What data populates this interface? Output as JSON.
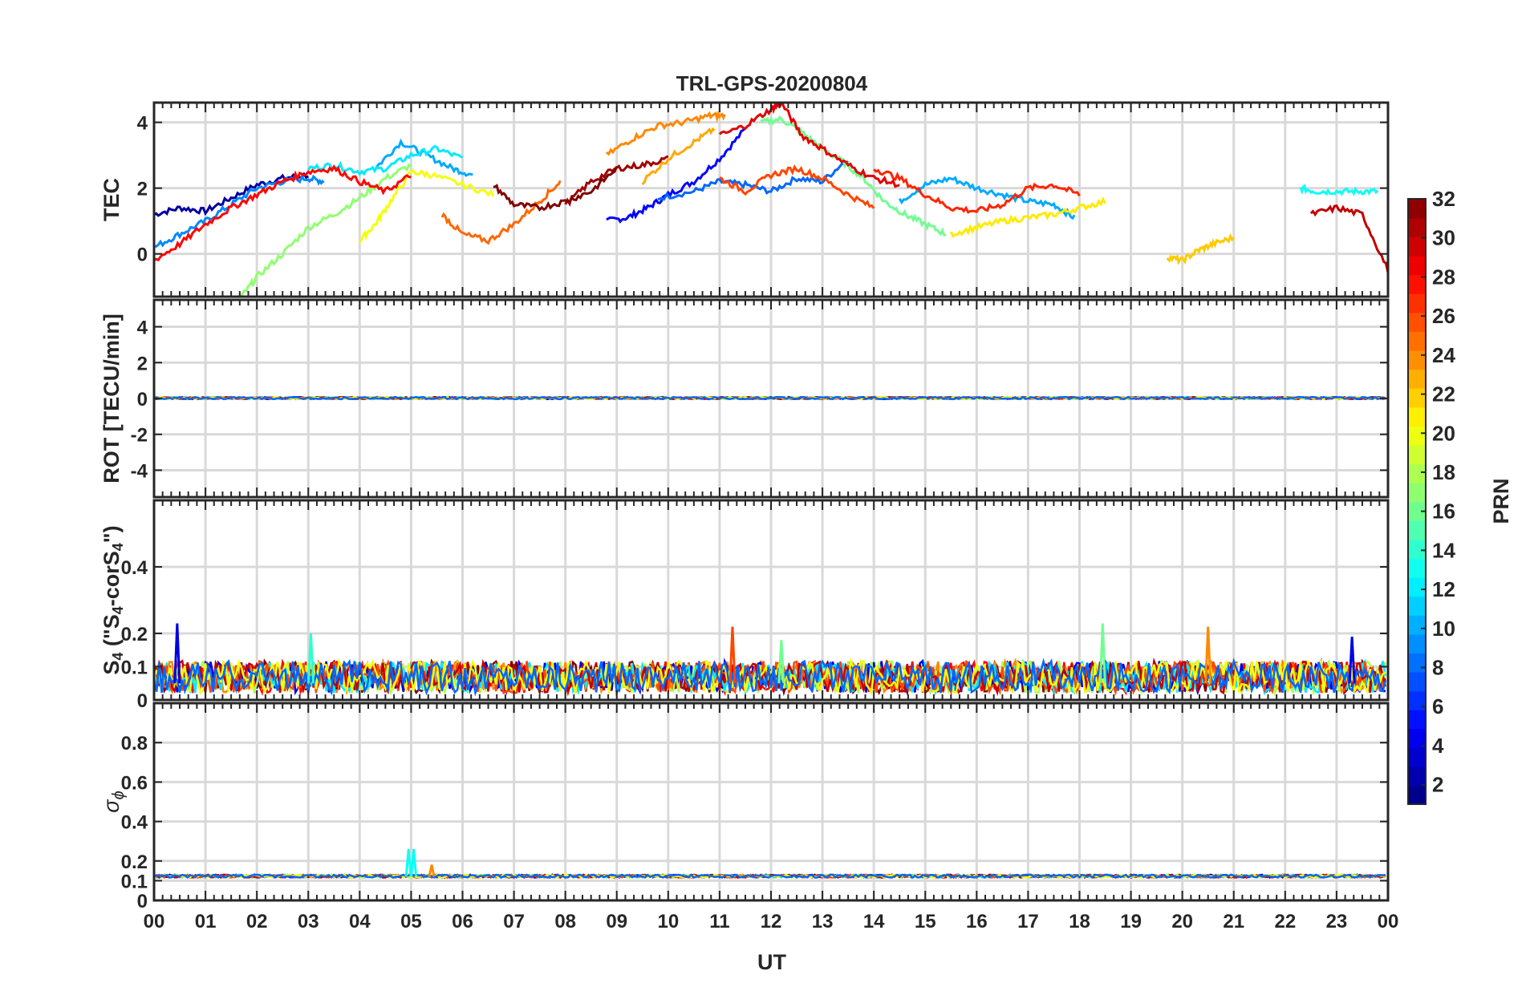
{
  "chart_data": {
    "type": "line",
    "title": "TRL-GPS-20200804",
    "xlabel": "UT",
    "x_ticks": [
      "00",
      "01",
      "02",
      "03",
      "04",
      "05",
      "06",
      "07",
      "08",
      "09",
      "10",
      "11",
      "12",
      "13",
      "14",
      "15",
      "16",
      "17",
      "18",
      "19",
      "20",
      "21",
      "22",
      "23",
      "00"
    ],
    "xlim": [
      0,
      24
    ],
    "colorbar": {
      "label": "PRN",
      "range": [
        1,
        32
      ],
      "ticks": [
        "2",
        "4",
        "6",
        "8",
        "10",
        "12",
        "14",
        "16",
        "18",
        "20",
        "22",
        "24",
        "26",
        "28",
        "30",
        "32"
      ],
      "colormap": "jet"
    },
    "panels": [
      {
        "name": "tec",
        "ylabel": "TEC",
        "ylim": [
          -1.3,
          4.6
        ],
        "yticks": [
          "0",
          "2",
          "4"
        ],
        "yticks_values": [
          0,
          2,
          4
        ],
        "series": [
          {
            "prn": 2,
            "x": [
              0,
              0.5,
              1,
              1.5,
              2,
              2.5,
              3
            ],
            "y": [
              1.2,
              1.4,
              1.3,
              1.7,
              2.1,
              2.3,
              2.4
            ]
          },
          {
            "prn": 5,
            "x": [
              8.8,
              9.2,
              9.6,
              10,
              10.5,
              11,
              11.5
            ],
            "y": [
              1.0,
              1.1,
              1.4,
              1.8,
              2.2,
              2.9,
              3.8
            ]
          },
          {
            "prn": 8,
            "x": [
              9.8,
              10.5,
              11,
              11.5,
              12,
              12.5,
              13,
              13.5
            ],
            "y": [
              1.7,
              1.9,
              2.2,
              2.1,
              1.9,
              2.3,
              2.2,
              2.9
            ]
          },
          {
            "prn": 9,
            "x": [
              0,
              0.5,
              1,
              1.5,
              2,
              2.5,
              3,
              3.3
            ],
            "y": [
              0.2,
              0.6,
              1.0,
              1.5,
              2.0,
              2.2,
              2.3,
              2.2
            ]
          },
          {
            "prn": 10,
            "x": [
              4.3,
              4.8,
              5.3,
              5.8,
              6.2
            ],
            "y": [
              2.6,
              3.4,
              3.0,
              2.6,
              2.4
            ]
          },
          {
            "prn": 10,
            "x": [
              14.5,
              15,
              15.5,
              16,
              16.5,
              17,
              17.5,
              17.9
            ],
            "y": [
              1.6,
              2.1,
              2.3,
              2.0,
              1.8,
              1.6,
              1.5,
              1.1
            ]
          },
          {
            "prn": 12,
            "x": [
              3,
              3.5,
              4,
              4.5,
              5,
              5.5,
              6
            ],
            "y": [
              2.6,
              2.7,
              2.5,
              2.6,
              3.0,
              3.2,
              2.9
            ]
          },
          {
            "prn": 13,
            "x": [
              22.3,
              22.6,
              23,
              23.4,
              23.8
            ],
            "y": [
              2.0,
              1.9,
              1.9,
              1.9,
              1.9
            ]
          },
          {
            "prn": 17,
            "x": [
              1.7,
              2,
              2.5,
              3,
              3.5,
              4,
              4.5,
              5
            ],
            "y": [
              -1.3,
              -0.7,
              0.0,
              0.8,
              1.2,
              1.7,
              2.3,
              2.7
            ]
          },
          {
            "prn": 16,
            "x": [
              11.8,
              12.2,
              12.6,
              13,
              13.4,
              13.8,
              14.2,
              14.6,
              15,
              15.4
            ],
            "y": [
              4.0,
              4.1,
              3.7,
              3.2,
              2.8,
              2.3,
              1.6,
              1.2,
              0.9,
              0.6
            ]
          },
          {
            "prn": 20,
            "x": [
              4.0,
              4.3,
              4.6,
              5,
              5.4,
              6,
              6.6
            ],
            "y": [
              0.4,
              0.9,
              1.6,
              2.5,
              2.4,
              2.1,
              1.8
            ]
          },
          {
            "prn": 21,
            "x": [
              15.5,
              16,
              16.5,
              17,
              17.5,
              18,
              18.5
            ],
            "y": [
              0.6,
              0.8,
              1.0,
              1.1,
              1.2,
              1.4,
              1.6
            ]
          },
          {
            "prn": 22,
            "x": [
              19.7,
              20,
              20.3,
              20.6,
              21
            ],
            "y": [
              -0.1,
              -0.2,
              0.1,
              0.3,
              0.5
            ]
          },
          {
            "prn": 23,
            "x": [
              9.5,
              10,
              10.5,
              10.9
            ],
            "y": [
              2.2,
              2.9,
              3.4,
              3.8
            ]
          },
          {
            "prn": 24,
            "x": [
              8.8,
              9.3,
              9.8,
              10.3,
              10.8,
              11.1
            ],
            "y": [
              3.0,
              3.5,
              3.9,
              4.0,
              4.2,
              4.2
            ]
          },
          {
            "prn": 25,
            "x": [
              5.6,
              6,
              6.5,
              7,
              7.5,
              7.9
            ],
            "y": [
              1.2,
              0.6,
              0.4,
              0.9,
              1.6,
              2.2
            ]
          },
          {
            "prn": 26,
            "x": [
              11,
              11.5,
              12,
              12.5,
              13,
              13.5,
              14
            ],
            "y": [
              2.3,
              1.9,
              2.4,
              2.6,
              2.3,
              1.8,
              1.4
            ]
          },
          {
            "prn": 27,
            "x": [
              14,
              14.5,
              15,
              15.5,
              16,
              16.5,
              17,
              17.5,
              18
            ],
            "y": [
              2.6,
              2.3,
              1.8,
              1.4,
              1.3,
              1.5,
              2.0,
              2.1,
              1.8
            ]
          },
          {
            "prn": 28,
            "x": [
              0,
              0.5,
              1,
              1.5,
              2,
              2.5,
              3,
              3.5,
              4,
              4.5,
              5
            ],
            "y": [
              -0.2,
              0.3,
              0.9,
              1.4,
              1.8,
              2.2,
              2.5,
              2.6,
              2.2,
              1.9,
              2.4
            ]
          },
          {
            "prn": 29,
            "x": [
              11,
              11.5,
              12,
              12.2,
              12.6,
              13,
              13.5,
              14,
              14.5
            ],
            "y": [
              3.6,
              3.9,
              4.4,
              4.6,
              3.6,
              3.2,
              2.7,
              2.3,
              2.1
            ]
          },
          {
            "prn": 30,
            "x": [
              22.5,
              23,
              23.5,
              24
            ],
            "y": [
              1.2,
              1.4,
              1.2,
              -0.5
            ]
          },
          {
            "prn": 31,
            "x": [
              8.0,
              8.5,
              9,
              9.5,
              10
            ],
            "y": [
              1.5,
              2.2,
              2.6,
              2.7,
              2.9
            ]
          },
          {
            "prn": 32,
            "x": [
              6.6,
              7,
              7.5,
              8,
              8.5,
              9
            ],
            "y": [
              2.1,
              1.5,
              1.4,
              1.6,
              1.9,
              2.6
            ]
          }
        ]
      },
      {
        "name": "rot",
        "ylabel": "ROT [TECU/min]",
        "ylim": [
          -5.5,
          5.5
        ],
        "yticks": [
          "-4",
          "-2",
          "0",
          "2",
          "4"
        ],
        "yticks_values": [
          -4,
          -2,
          0,
          2,
          4
        ],
        "noise_band": {
          "center": 0.0,
          "amplitude": 0.12
        }
      },
      {
        "name": "s4",
        "ylabel": "S",
        "ylabel_sub": "4",
        "ylabel_rest": " (\"S",
        "ylabel_sub2": "4",
        "ylabel_mid": "-corS",
        "ylabel_sub3": "4",
        "ylabel_end": "\")",
        "ylim": [
          0,
          0.6
        ],
        "yticks": [
          "0",
          "0.1",
          "0.2",
          "0.4"
        ],
        "yticks_values": [
          0,
          0.1,
          0.2,
          0.4
        ],
        "noise_band": {
          "center": 0.05,
          "amplitude": 0.06
        },
        "spikes": [
          {
            "x": 0.45,
            "y": 0.23,
            "prn": 4
          },
          {
            "x": 3.05,
            "y": 0.2,
            "prn": 14
          },
          {
            "x": 11.25,
            "y": 0.22,
            "prn": 26
          },
          {
            "x": 12.2,
            "y": 0.18,
            "prn": 16
          },
          {
            "x": 18.45,
            "y": 0.23,
            "prn": 16
          },
          {
            "x": 20.5,
            "y": 0.22,
            "prn": 24
          },
          {
            "x": 23.3,
            "y": 0.19,
            "prn": 4
          }
        ]
      },
      {
        "name": "sigma",
        "ylabel": "σ",
        "ylabel_sub": "ϕ",
        "ylim": [
          0,
          1.0
        ],
        "yticks": [
          "0",
          "0.1",
          "0.2",
          "0.4",
          "0.6",
          "0.8"
        ],
        "yticks_values": [
          0,
          0.1,
          0.2,
          0.4,
          0.6,
          0.8
        ],
        "noise_band": {
          "center": 0.12,
          "amplitude": 0.015
        },
        "spikes": [
          {
            "x": 4.95,
            "y": 0.26,
            "prn": 13
          },
          {
            "x": 5.05,
            "y": 0.26,
            "prn": 13
          },
          {
            "x": 5.4,
            "y": 0.18,
            "prn": 24
          }
        ]
      }
    ]
  }
}
